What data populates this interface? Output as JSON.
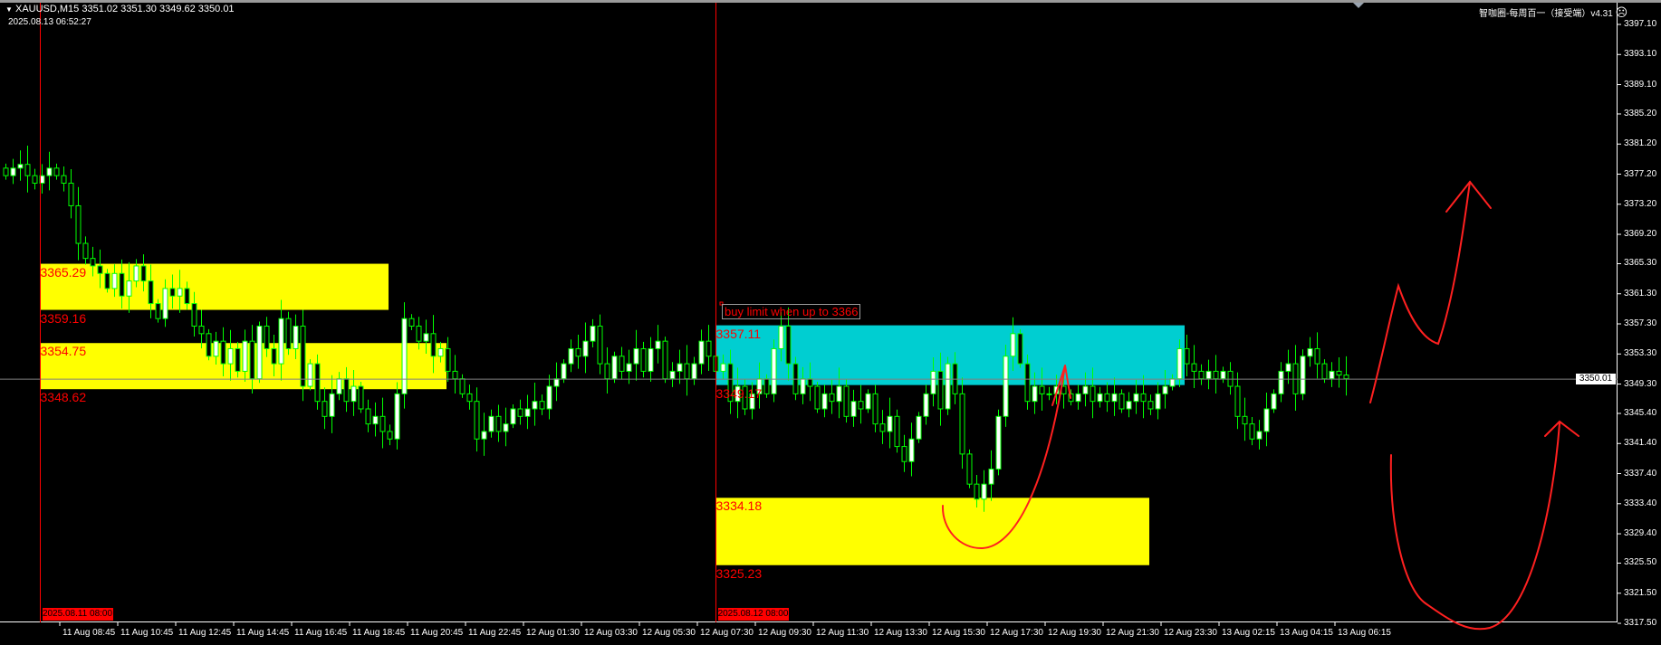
{
  "header": {
    "symbol_line": "XAUUSD,M15  3351.02 3351.30 3349.62 3350.01",
    "datetime": "2025.08.13 06:52:27",
    "indicator_label": "智咖圈-每周百一（接受端）v4.31",
    "indicator_icon": "sad-face-icon"
  },
  "colors": {
    "background": "#000000",
    "candle_outline": "#00ff00",
    "bull_body": "#ffffff",
    "bear_body": "#000000",
    "zone_yellow": "#ffff00",
    "zone_cyan": "#00ced1",
    "annotation_red": "#ff0000",
    "price_line": "#808080"
  },
  "annotation_text": "buy limit when up to 3366",
  "chart_data": {
    "type": "candlestick",
    "symbol": "XAUUSD",
    "timeframe": "M15",
    "current_price": "3350.01",
    "ylim": [
      3317.5,
      3397.1
    ],
    "price_ticks": [
      "3397.10",
      "3393.10",
      "3389.10",
      "3385.20",
      "3381.20",
      "3377.20",
      "3373.20",
      "3369.20",
      "3365.30",
      "3361.30",
      "3357.30",
      "3353.30",
      "3349.30",
      "3345.40",
      "3341.40",
      "3337.40",
      "3333.40",
      "3329.40",
      "3325.50",
      "3321.50",
      "3317.50"
    ],
    "time_ticks": [
      "11 Aug 08:45",
      "11 Aug 10:45",
      "11 Aug 12:45",
      "11 Aug 14:45",
      "11 Aug 16:45",
      "11 Aug 18:45",
      "11 Aug 20:45",
      "11 Aug 22:45",
      "12 Aug 01:30",
      "12 Aug 03:30",
      "12 Aug 05:30",
      "12 Aug 07:30",
      "12 Aug 09:30",
      "12 Aug 11:30",
      "12 Aug 13:30",
      "12 Aug 15:30",
      "12 Aug 17:30",
      "12 Aug 19:30",
      "12 Aug 21:30",
      "12 Aug 23:30",
      "13 Aug 02:15",
      "13 Aug 04:15",
      "13 Aug 06:15"
    ],
    "period_separators": [
      "2025.08.11 08:00",
      "2025.08.12 08:00"
    ],
    "closes": [
      3377,
      3378,
      3378.5,
      3377,
      3376,
      3377,
      3378,
      3377,
      3376,
      3373,
      3368,
      3366,
      3365,
      3364,
      3362,
      3364,
      3361,
      3363,
      3365,
      3363,
      3360,
      3358,
      3362,
      3361,
      3362,
      3360,
      3357,
      3356,
      3353,
      3355,
      3352,
      3354,
      3351,
      3355,
      3350,
      3357,
      3354,
      3352,
      3358,
      3354,
      3357,
      3349,
      3352,
      3347,
      3345,
      3348,
      3350,
      3347,
      3349,
      3346,
      3344,
      3345,
      3343,
      3342,
      3348,
      3358,
      3357,
      3355,
      3356,
      3353,
      3354,
      3351,
      3350,
      3348,
      3347,
      3342,
      3343,
      3345,
      3343,
      3344,
      3346,
      3345,
      3346,
      3347,
      3346,
      3349,
      3350,
      3352,
      3354,
      3353,
      3355,
      3357,
      3352,
      3350,
      3353,
      3351,
      3352,
      3354,
      3351,
      3354,
      3355,
      3350,
      3351,
      3352,
      3350,
      3352,
      3355,
      3353,
      3351,
      3352,
      3347,
      3349,
      3346,
      3348,
      3350,
      3348,
      3354,
      3357,
      3352,
      3348,
      3350,
      3349,
      3346,
      3348,
      3347,
      3349,
      3345,
      3347,
      3346,
      3348,
      3344,
      3343,
      3345,
      3341,
      3339,
      3342,
      3345,
      3348,
      3351,
      3346,
      3352,
      3348,
      3340,
      3336,
      3334,
      3336,
      3338,
      3345,
      3353,
      3356,
      3352,
      3347,
      3349,
      3348,
      3348,
      3349,
      3348,
      3347,
      3348,
      3349,
      3347,
      3348,
      3347,
      3348,
      3346,
      3347,
      3348,
      3347,
      3346,
      3348,
      3349,
      3350,
      3354,
      3352,
      3351,
      3350,
      3351,
      3350,
      3351,
      3349,
      3345,
      3344,
      3342,
      3343,
      3346,
      3348,
      3351,
      3352,
      3348,
      3353,
      3354,
      3352,
      3350,
      3351,
      3350.5,
      3350.01
    ],
    "zones": [
      {
        "color": "yellow",
        "top": "3365.29",
        "bottom": "3359.16",
        "period": 1
      },
      {
        "color": "yellow",
        "top": "3354.75",
        "bottom": "3348.62",
        "period": 1
      },
      {
        "color": "cyan",
        "top": "3357.11",
        "bottom": "3349.17",
        "period": 2
      },
      {
        "color": "yellow",
        "top": "3334.18",
        "bottom": "3325.23",
        "period": 2
      }
    ]
  }
}
